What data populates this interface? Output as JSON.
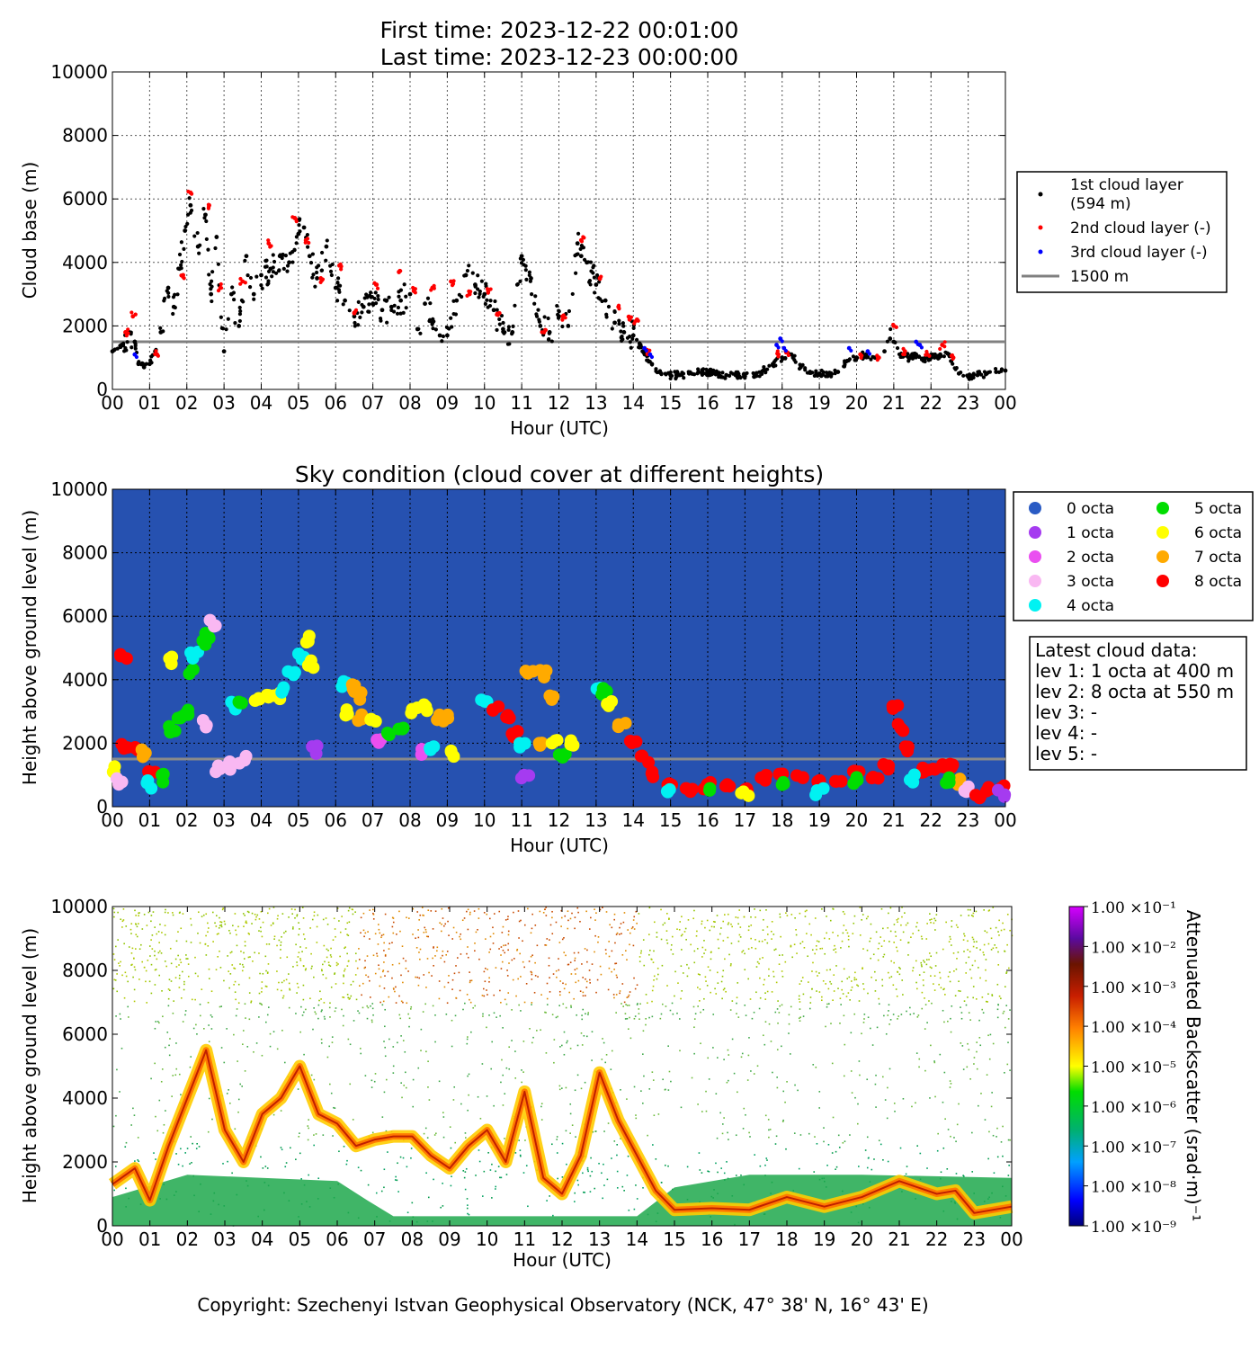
{
  "header": {
    "line1": "First time: 2023-12-22 00:01:00",
    "line2": "Last time: 2023-12-23 00:00:00"
  },
  "hour_ticks": [
    "00",
    "01",
    "02",
    "03",
    "04",
    "05",
    "06",
    "07",
    "08",
    "09",
    "10",
    "11",
    "12",
    "13",
    "14",
    "15",
    "16",
    "17",
    "18",
    "19",
    "20",
    "21",
    "22",
    "23",
    "00"
  ],
  "height_ticks": [
    "0",
    "2000",
    "4000",
    "6000",
    "8000",
    "10000"
  ],
  "colors": {
    "layer1": "#000000",
    "layer2": "#ff0000",
    "layer3": "#0000ff",
    "threshold": "#808080",
    "sky_bg": "#2651b0",
    "octa": [
      "#2a5bc4",
      "#a53bf0",
      "#ea4ff0",
      "#f9b8f2",
      "#00f2f2",
      "#00dd00",
      "#ffff00",
      "#ffaa00",
      "#ff0000"
    ]
  },
  "chart_data": [
    {
      "type": "scatter",
      "title": "",
      "xlabel": "Hour (UTC)",
      "ylabel": "Cloud base (m)",
      "xlim": [
        0,
        24
      ],
      "ylim": [
        0,
        10000
      ],
      "grid": true,
      "legend_position": "right",
      "legend": {
        "layer1_line1": "1st cloud layer",
        "layer1_line2": "(594 m)",
        "layer2": "2nd cloud layer (-)",
        "layer3": "3rd cloud layer (-)",
        "threshold": "1500 m"
      },
      "threshold_m": 1500,
      "series": [
        {
          "name": "1st cloud layer",
          "x": [
            0,
            0.25,
            0.45,
            0.6,
            0.7,
            0.85,
            1.0,
            1.15,
            1.3,
            1.5,
            1.65,
            1.8,
            1.95,
            2.1,
            2.3,
            2.5,
            2.65,
            2.8,
            3.0,
            3.2,
            3.4,
            3.6,
            3.8,
            4.0,
            4.25,
            4.5,
            4.75,
            5.0,
            5.15,
            5.3,
            5.5,
            5.75,
            6.0,
            6.25,
            6.5,
            6.75,
            7.0,
            7.25,
            7.5,
            7.75,
            8.0,
            8.2,
            8.4,
            8.6,
            8.8,
            9.0,
            9.25,
            9.5,
            9.75,
            10.0,
            10.25,
            10.5,
            10.75,
            11.0,
            11.25,
            11.5,
            11.75,
            12.0,
            12.25,
            12.5,
            12.6,
            12.75,
            13.0,
            13.25,
            13.5,
            13.75,
            14.0,
            14.25,
            14.5,
            14.75,
            15.0,
            15.25,
            15.5,
            15.75,
            16.0,
            16.25,
            16.5,
            16.75,
            17.0,
            17.25,
            17.5,
            17.75,
            18.0,
            18.25,
            18.5,
            18.75,
            19.0,
            19.25,
            19.5,
            19.75,
            20.0,
            20.25,
            20.5,
            20.75,
            20.9,
            21.0,
            21.2,
            21.4,
            21.6,
            21.8,
            22.0,
            22.25,
            22.5,
            22.75,
            23.0,
            23.25,
            23.5,
            23.75,
            24.0
          ],
          "y": [
            1200,
            1400,
            1800,
            1500,
            800,
            700,
            800,
            1200,
            1800,
            3200,
            2600,
            3800,
            5000,
            5800,
            4500,
            5500,
            3000,
            4800,
            1200,
            3000,
            2000,
            4200,
            3000,
            3600,
            3800,
            4200,
            4000,
            4900,
            5100,
            4200,
            3500,
            4500,
            3200,
            2800,
            2300,
            2600,
            2700,
            2500,
            2600,
            2800,
            3000,
            1900,
            2700,
            2100,
            1700,
            1700,
            2800,
            3600,
            3300,
            3000,
            2500,
            1900,
            1800,
            4200,
            3500,
            2000,
            1800,
            2300,
            2000,
            4600,
            4200,
            4000,
            3300,
            2800,
            2100,
            1800,
            1700,
            1200,
            800,
            500,
            450,
            450,
            500,
            550,
            550,
            500,
            450,
            450,
            420,
            400,
            600,
            800,
            1000,
            1100,
            700,
            550,
            500,
            450,
            550,
            900,
            1000,
            1100,
            1000,
            1200,
            1600,
            1500,
            1100,
            1000,
            1100,
            900,
            1000,
            1100,
            1050,
            500,
            400,
            450,
            500,
            550,
            594
          ]
        },
        {
          "name": "2nd cloud layer (-)",
          "x": [
            0.35,
            0.55,
            1.2,
            1.9,
            2.1,
            2.6,
            2.9,
            3.5,
            4.2,
            4.9,
            5.2,
            5.6,
            6.1,
            6.5,
            7.1,
            7.7,
            8.1,
            8.6,
            9.1,
            9.6,
            10.1,
            10.4,
            11.6,
            12.1,
            12.6,
            13.1,
            13.6,
            13.9,
            14.1,
            14.4,
            17.9,
            18.1,
            20.1,
            20.6,
            21.0,
            21.3,
            21.9,
            22.3,
            22.6
          ],
          "y": [
            1800,
            2300,
            1100,
            3600,
            6200,
            5800,
            3200,
            3400,
            4600,
            5400,
            4700,
            3500,
            3900,
            2400,
            3300,
            3700,
            3100,
            3200,
            3400,
            3000,
            3100,
            2400,
            1800,
            2300,
            4700,
            3500,
            2600,
            2200,
            2200,
            1200,
            1100,
            1200,
            1100,
            1000,
            2000,
            1200,
            1100,
            1400,
            1000
          ]
        },
        {
          "name": "3rd cloud layer (-)",
          "x": [
            0.6,
            14.3,
            14.45,
            17.85,
            17.95,
            18.05,
            19.8,
            20.3,
            21.6,
            21.7
          ],
          "y": [
            1100,
            1300,
            1100,
            1400,
            1600,
            1300,
            1300,
            1200,
            1500,
            1400
          ]
        }
      ]
    },
    {
      "type": "scatter",
      "title": "Sky condition (cloud cover at different heights)",
      "xlabel": "Hour (UTC)",
      "ylabel": "Height above ground level (m)",
      "xlim": [
        0,
        24
      ],
      "ylim": [
        0,
        10000
      ],
      "grid": true,
      "legend_position": "right",
      "categories": [
        "0 octa",
        "1 octa",
        "2 octa",
        "3 octa",
        "4 octa",
        "5 octa",
        "6 octa",
        "7 octa",
        "8 octa"
      ],
      "threshold_m": 1500,
      "info_box": {
        "heading": "Latest cloud data:",
        "lines": [
          "lev 1: 1 octa at 400 m",
          "lev 2: 8 octa at 550 m",
          "lev 3: -",
          "lev 4: -",
          "lev 5: -"
        ]
      },
      "points": [
        [
          0.1,
          1200,
          6
        ],
        [
          0.2,
          800,
          3
        ],
        [
          0.3,
          4700,
          8
        ],
        [
          0.35,
          1900,
          8
        ],
        [
          0.6,
          1900,
          8
        ],
        [
          0.8,
          1700,
          7
        ],
        [
          1.05,
          1200,
          8
        ],
        [
          1.0,
          700,
          4
        ],
        [
          1.3,
          900,
          5
        ],
        [
          1.55,
          4600,
          6
        ],
        [
          1.6,
          2400,
          5
        ],
        [
          1.8,
          2800,
          5
        ],
        [
          2.0,
          3000,
          5
        ],
        [
          2.1,
          4200,
          5
        ],
        [
          2.2,
          4800,
          4
        ],
        [
          2.5,
          5200,
          5
        ],
        [
          2.6,
          5400,
          5
        ],
        [
          2.7,
          5800,
          3
        ],
        [
          2.45,
          2600,
          3
        ],
        [
          2.85,
          1200,
          3
        ],
        [
          3.2,
          1300,
          3
        ],
        [
          3.5,
          1500,
          3
        ],
        [
          3.3,
          3200,
          4
        ],
        [
          3.5,
          3300,
          5
        ],
        [
          3.9,
          3300,
          6
        ],
        [
          4.1,
          3500,
          6
        ],
        [
          4.4,
          3500,
          6
        ],
        [
          4.6,
          3700,
          4
        ],
        [
          4.8,
          4200,
          4
        ],
        [
          5.05,
          4700,
          4
        ],
        [
          5.25,
          5300,
          6
        ],
        [
          5.35,
          4500,
          6
        ],
        [
          5.45,
          1800,
          1
        ],
        [
          6.2,
          3900,
          4
        ],
        [
          6.5,
          3800,
          7
        ],
        [
          6.6,
          3500,
          7
        ],
        [
          6.3,
          3000,
          6
        ],
        [
          6.7,
          2800,
          7
        ],
        [
          7.0,
          2700,
          6
        ],
        [
          7.2,
          2100,
          2
        ],
        [
          7.5,
          2300,
          5
        ],
        [
          7.8,
          2500,
          5
        ],
        [
          8.1,
          3000,
          6
        ],
        [
          8.4,
          3100,
          6
        ],
        [
          8.7,
          2800,
          7
        ],
        [
          9.0,
          2800,
          7
        ],
        [
          8.3,
          1700,
          2
        ],
        [
          8.6,
          1800,
          4
        ],
        [
          9.1,
          1700,
          6
        ],
        [
          10.0,
          3300,
          4
        ],
        [
          10.3,
          3100,
          8
        ],
        [
          10.6,
          2800,
          8
        ],
        [
          10.8,
          2300,
          8
        ],
        [
          11.0,
          1900,
          4
        ],
        [
          11.1,
          900,
          1
        ],
        [
          11.2,
          4200,
          7
        ],
        [
          11.6,
          4200,
          7
        ],
        [
          11.8,
          3500,
          7
        ],
        [
          11.5,
          2000,
          7
        ],
        [
          11.9,
          2100,
          6
        ],
        [
          12.1,
          1600,
          5
        ],
        [
          12.4,
          2000,
          6
        ],
        [
          13.0,
          3800,
          4
        ],
        [
          13.2,
          3600,
          5
        ],
        [
          13.4,
          3200,
          6
        ],
        [
          13.7,
          2600,
          7
        ],
        [
          14.0,
          2000,
          8
        ],
        [
          14.3,
          1500,
          8
        ],
        [
          14.6,
          1000,
          8
        ],
        [
          15.0,
          700,
          8
        ],
        [
          15.5,
          500,
          8
        ],
        [
          16.0,
          650,
          8
        ],
        [
          16.5,
          600,
          8
        ],
        [
          17.0,
          550,
          8
        ],
        [
          17.5,
          900,
          8
        ],
        [
          18.0,
          1000,
          8
        ],
        [
          18.5,
          950,
          8
        ],
        [
          19.0,
          900,
          8
        ],
        [
          19.5,
          900,
          8
        ],
        [
          20.0,
          1100,
          8
        ],
        [
          20.5,
          1000,
          8
        ],
        [
          20.8,
          1300,
          8
        ],
        [
          21.0,
          3100,
          8
        ],
        [
          21.2,
          2500,
          8
        ],
        [
          21.4,
          1800,
          8
        ],
        [
          21.7,
          1200,
          8
        ],
        [
          22.0,
          1100,
          8
        ],
        [
          22.3,
          1200,
          8
        ],
        [
          22.6,
          1300,
          8
        ],
        [
          22.8,
          800,
          7
        ],
        [
          23.0,
          500,
          3
        ],
        [
          23.3,
          400,
          8
        ],
        [
          23.6,
          500,
          8
        ],
        [
          23.9,
          550,
          8
        ],
        [
          15.0,
          450,
          4
        ],
        [
          16.0,
          450,
          5
        ],
        [
          17.0,
          420,
          6
        ],
        [
          18.0,
          650,
          5
        ],
        [
          19.0,
          500,
          4
        ],
        [
          20.0,
          800,
          5
        ],
        [
          21.5,
          900,
          4
        ],
        [
          22.5,
          800,
          5
        ],
        [
          23.9,
          400,
          1
        ]
      ]
    },
    {
      "type": "heatmap",
      "title": "",
      "xlabel": "Hour (UTC)",
      "ylabel": "Height above ground level (m)",
      "xlim": [
        0,
        24
      ],
      "ylim": [
        0,
        10000
      ],
      "colorbar_label": "Attenuated Backscatter (srad·m)⁻¹",
      "colorbar_ticks": [
        "1.00 ×10⁻¹",
        "1.00 ×10⁻²",
        "1.00 ×10⁻³",
        "1.00 ×10⁻⁴",
        "1.00 ×10⁻⁵",
        "1.00 ×10⁻⁶",
        "1.00 ×10⁻⁷",
        "1.00 ×10⁻⁸",
        "1.00 ×10⁻⁹"
      ],
      "cloud_trace_x": [
        0,
        0.6,
        1.0,
        1.5,
        2.0,
        2.5,
        3.0,
        3.5,
        4.0,
        4.5,
        5.0,
        5.5,
        6.0,
        6.5,
        7.0,
        7.5,
        8.0,
        8.5,
        9.0,
        9.5,
        10.0,
        10.5,
        11.0,
        11.5,
        12.0,
        12.5,
        13.0,
        13.5,
        14.0,
        14.5,
        15.0,
        16.0,
        17.0,
        18.0,
        19.0,
        20.0,
        21.0,
        22.0,
        22.5,
        23.0,
        24.0
      ],
      "cloud_trace_y": [
        1300,
        1800,
        800,
        2500,
        4000,
        5500,
        3000,
        2000,
        3500,
        4000,
        5000,
        3500,
        3200,
        2500,
        2700,
        2800,
        2800,
        2200,
        1800,
        2500,
        3000,
        2000,
        4200,
        1500,
        1000,
        2200,
        4800,
        3300,
        2200,
        1100,
        500,
        550,
        500,
        900,
        600,
        900,
        1400,
        1000,
        1100,
        400,
        600
      ]
    }
  ],
  "footer": {
    "text": "Copyright: Szechenyi Istvan Geophysical Observatory (NCK, 47° 38' N, 16° 43' E)"
  }
}
